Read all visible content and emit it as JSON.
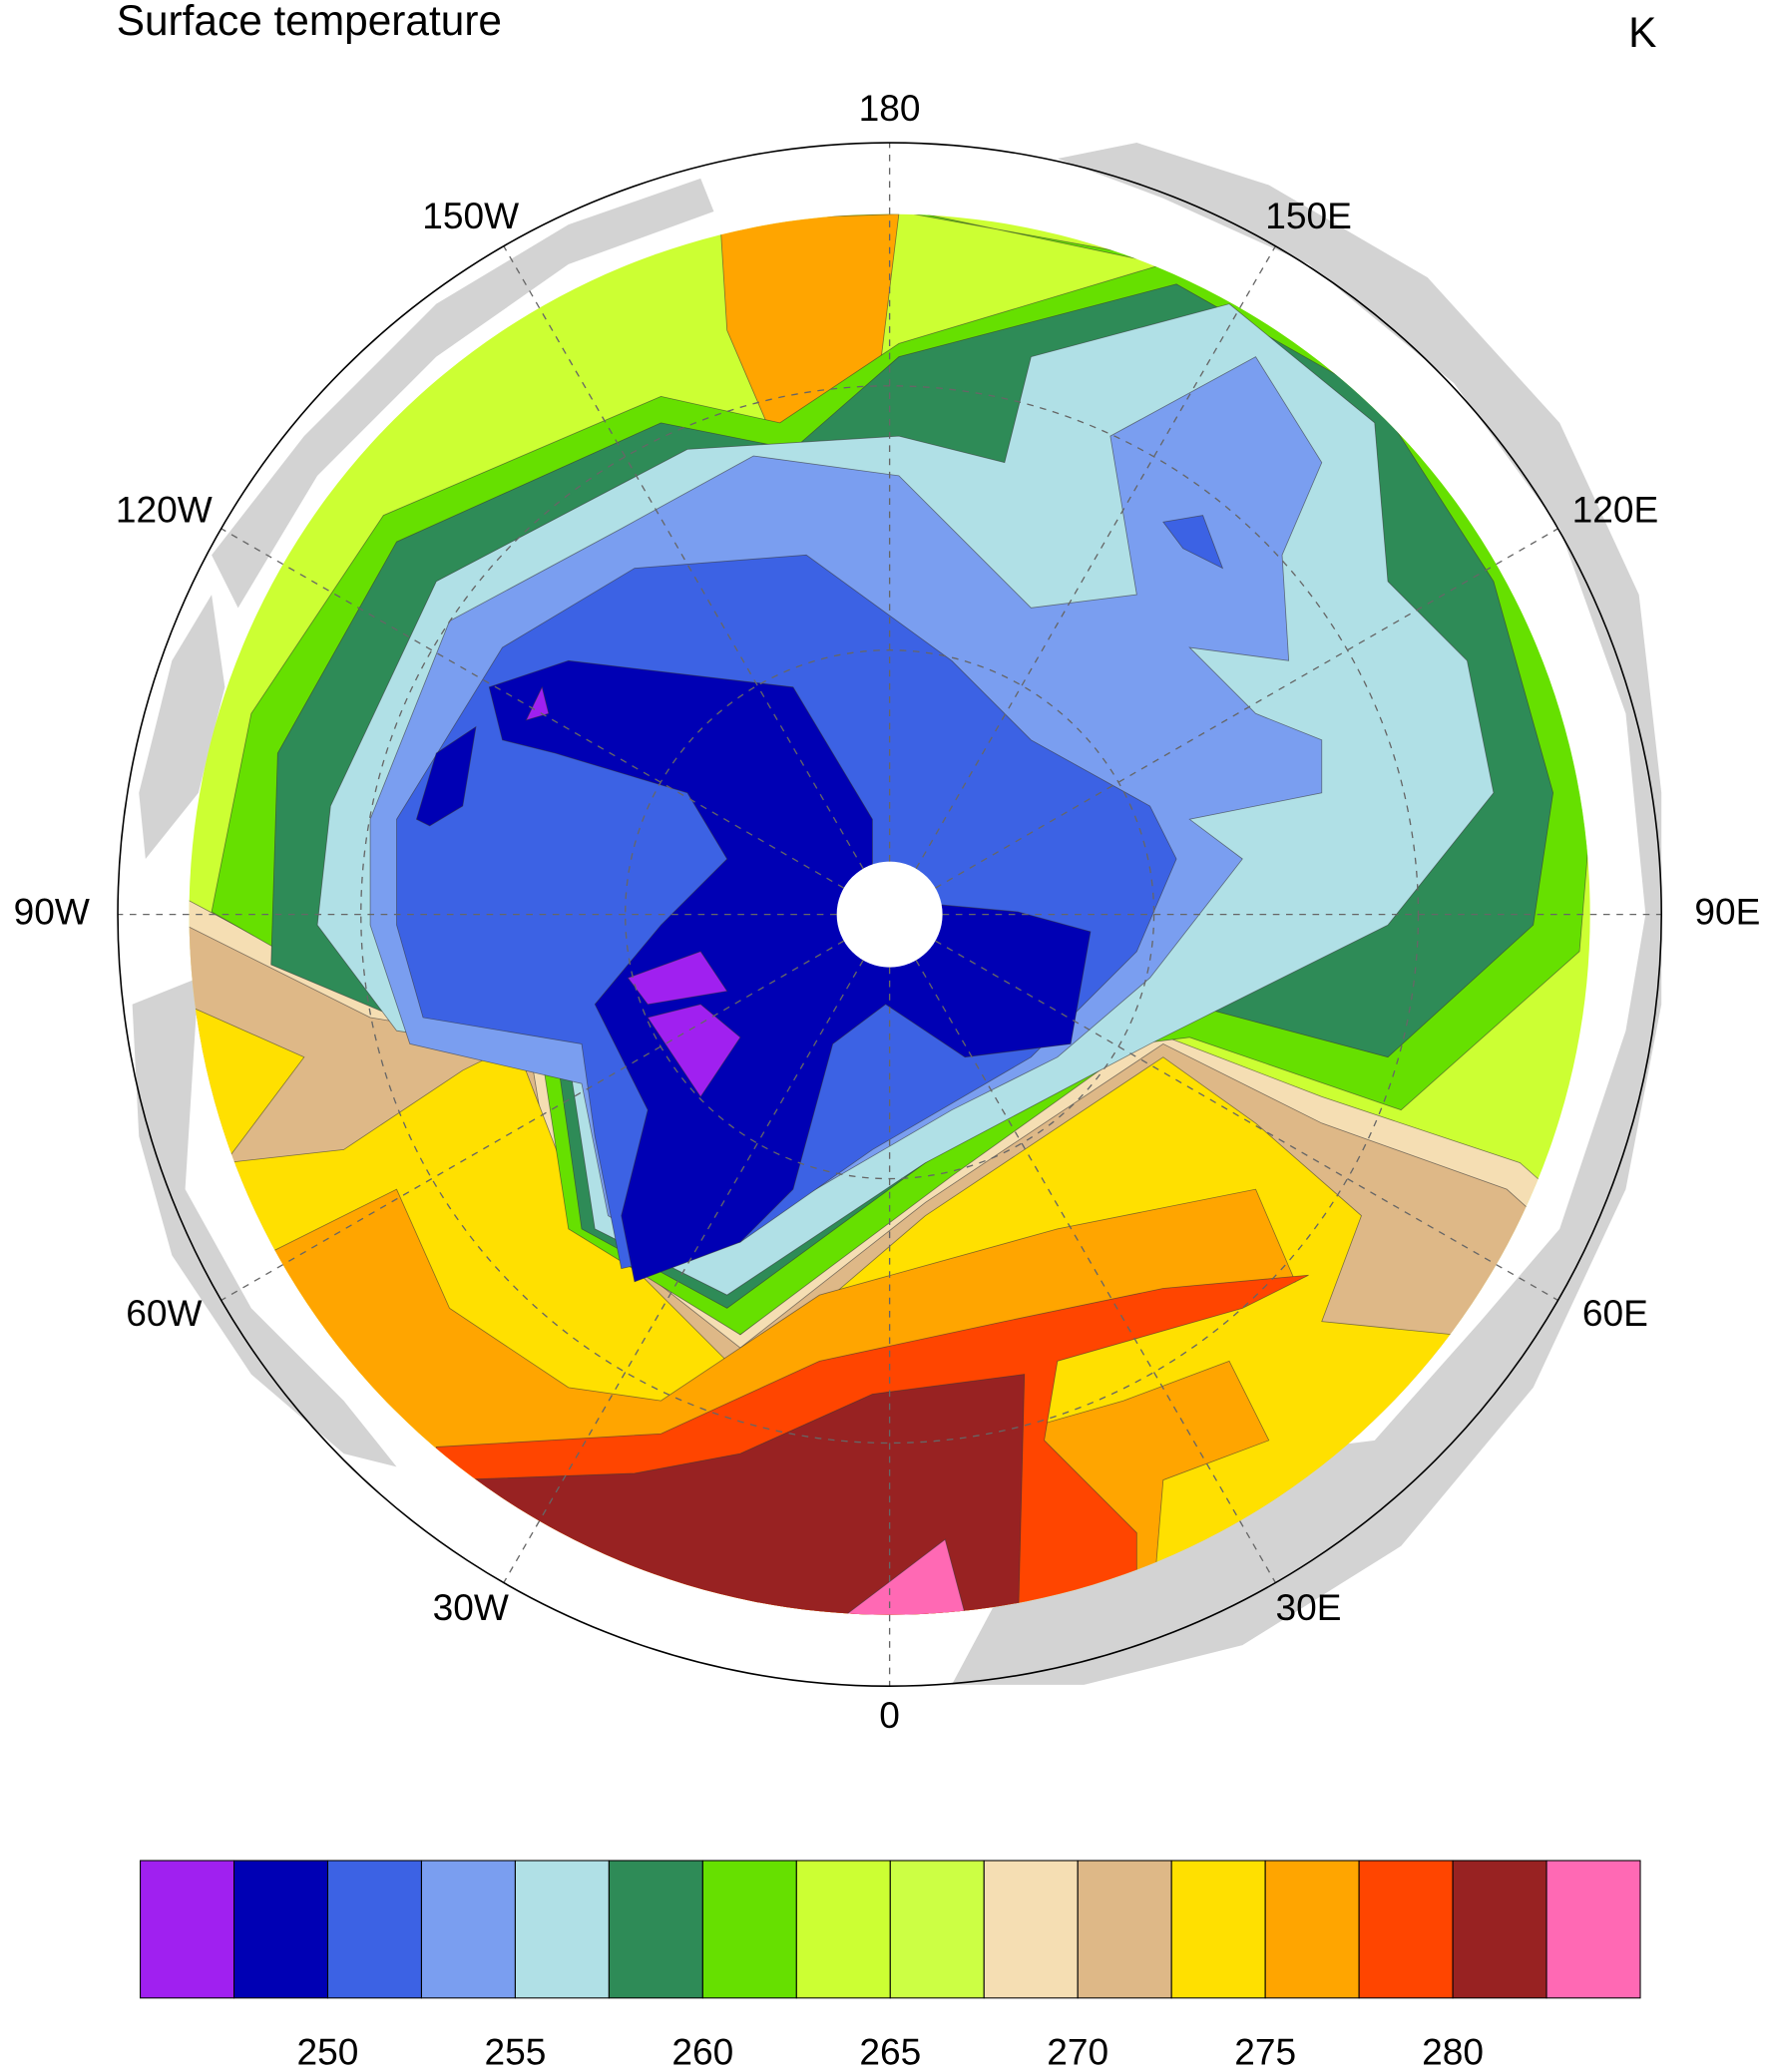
{
  "title": "Surface temperature",
  "units": "K",
  "lon_labels": [
    "180",
    "150E",
    "120E",
    "90E",
    "60E",
    "30E",
    "0",
    "30W",
    "60W",
    "90W",
    "120W",
    "150W"
  ],
  "colorbar": {
    "colors": [
      "#a020f0",
      "#0000b4",
      "#3c62e4",
      "#7a9ef0",
      "#b0e0e6",
      "#2e8b57",
      "#66e000",
      "#ccff33",
      "#ccff44",
      "#f5deb3",
      "#deb887",
      "#ffe000",
      "#ffa500",
      "#ff4500",
      "#982222",
      "#ff69b4"
    ],
    "lim": [
      245,
      285
    ],
    "ticks": [
      250,
      255,
      260,
      265,
      270,
      275,
      280
    ]
  }
}
